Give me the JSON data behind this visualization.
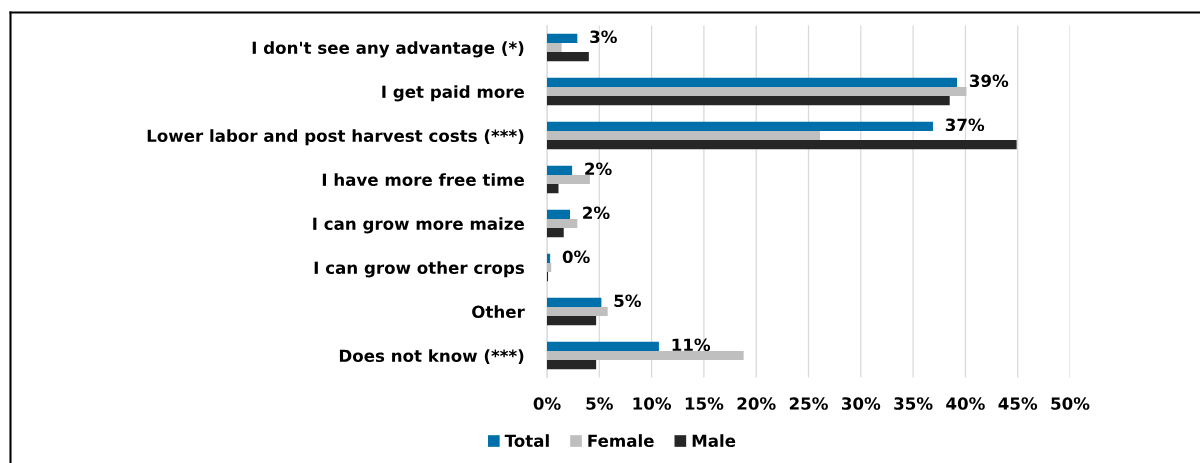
{
  "chart_data": {
    "type": "bar",
    "orientation": "horizontal",
    "categories": [
      "I don't see any advantage (*)",
      "I get paid more",
      "Lower labor and post harvest costs (***)",
      "I have more free time",
      "I can grow more maize",
      "I can grow other crops",
      "Other",
      "Does not know (***)"
    ],
    "series": [
      {
        "name": "Total",
        "color": "#0070aa",
        "values": [
          2.9,
          39.2,
          36.9,
          2.4,
          2.2,
          0.3,
          5.2,
          10.7
        ],
        "value_labels": [
          "3%",
          "39%",
          "37%",
          "2%",
          "2%",
          "0%",
          "5%",
          "11%"
        ]
      },
      {
        "name": "Female",
        "color": "#bfbfbf",
        "values": [
          1.4,
          40.1,
          26.1,
          4.1,
          2.9,
          0.4,
          5.8,
          18.8
        ]
      },
      {
        "name": "Male",
        "color": "#262626",
        "values": [
          4.0,
          38.5,
          44.9,
          1.1,
          1.6,
          0.1,
          4.7,
          4.7
        ]
      }
    ],
    "xlim": [
      0,
      50
    ],
    "xticks": [
      {
        "value": 0,
        "label": "0%"
      },
      {
        "value": 5,
        "label": "5%"
      },
      {
        "value": 10,
        "label": "10%"
      },
      {
        "value": 15,
        "label": "15%"
      },
      {
        "value": 20,
        "label": "20%"
      },
      {
        "value": 25,
        "label": "25%"
      },
      {
        "value": 30,
        "label": "30%"
      },
      {
        "value": 35,
        "label": "35%"
      },
      {
        "value": 40,
        "label": "40%"
      },
      {
        "value": 45,
        "label": "45%"
      },
      {
        "value": 50,
        "label": "50%"
      }
    ],
    "grid": "x",
    "legend": "bottom"
  }
}
